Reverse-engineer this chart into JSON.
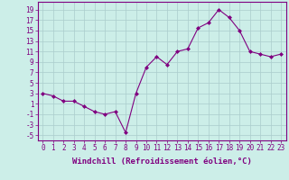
{
  "x": [
    0,
    1,
    2,
    3,
    4,
    5,
    6,
    7,
    8,
    9,
    10,
    11,
    12,
    13,
    14,
    15,
    16,
    17,
    18,
    19,
    20,
    21,
    22,
    23
  ],
  "y": [
    3,
    2.5,
    1.5,
    1.5,
    0.5,
    -0.5,
    -1,
    -0.5,
    -4.5,
    3,
    8,
    10,
    8.5,
    11,
    11.5,
    15.5,
    16.5,
    19,
    17.5,
    15,
    11,
    10.5,
    10,
    10.5
  ],
  "line_color": "#800080",
  "marker": "D",
  "marker_size": 2.0,
  "bg_color": "#cceee8",
  "grid_color": "#aacccc",
  "xlabel": "Windchill (Refroidissement éolien,°C)",
  "xlabel_fontsize": 6.5,
  "ytick_labels": [
    "-5",
    "-3",
    "-1",
    "1",
    "3",
    "5",
    "7",
    "9",
    "11",
    "13",
    "15",
    "17",
    "19"
  ],
  "ytick_values": [
    -5,
    -3,
    -1,
    1,
    3,
    5,
    7,
    9,
    11,
    13,
    15,
    17,
    19
  ],
  "ylim": [
    -6,
    20.5
  ],
  "xlim": [
    -0.5,
    23.5
  ],
  "xtick_labels": [
    "0",
    "1",
    "2",
    "3",
    "4",
    "5",
    "6",
    "7",
    "8",
    "9",
    "10",
    "11",
    "12",
    "13",
    "14",
    "15",
    "16",
    "17",
    "18",
    "19",
    "20",
    "21",
    "22",
    "23"
  ],
  "tick_fontsize": 5.5,
  "axis_color": "#800080"
}
